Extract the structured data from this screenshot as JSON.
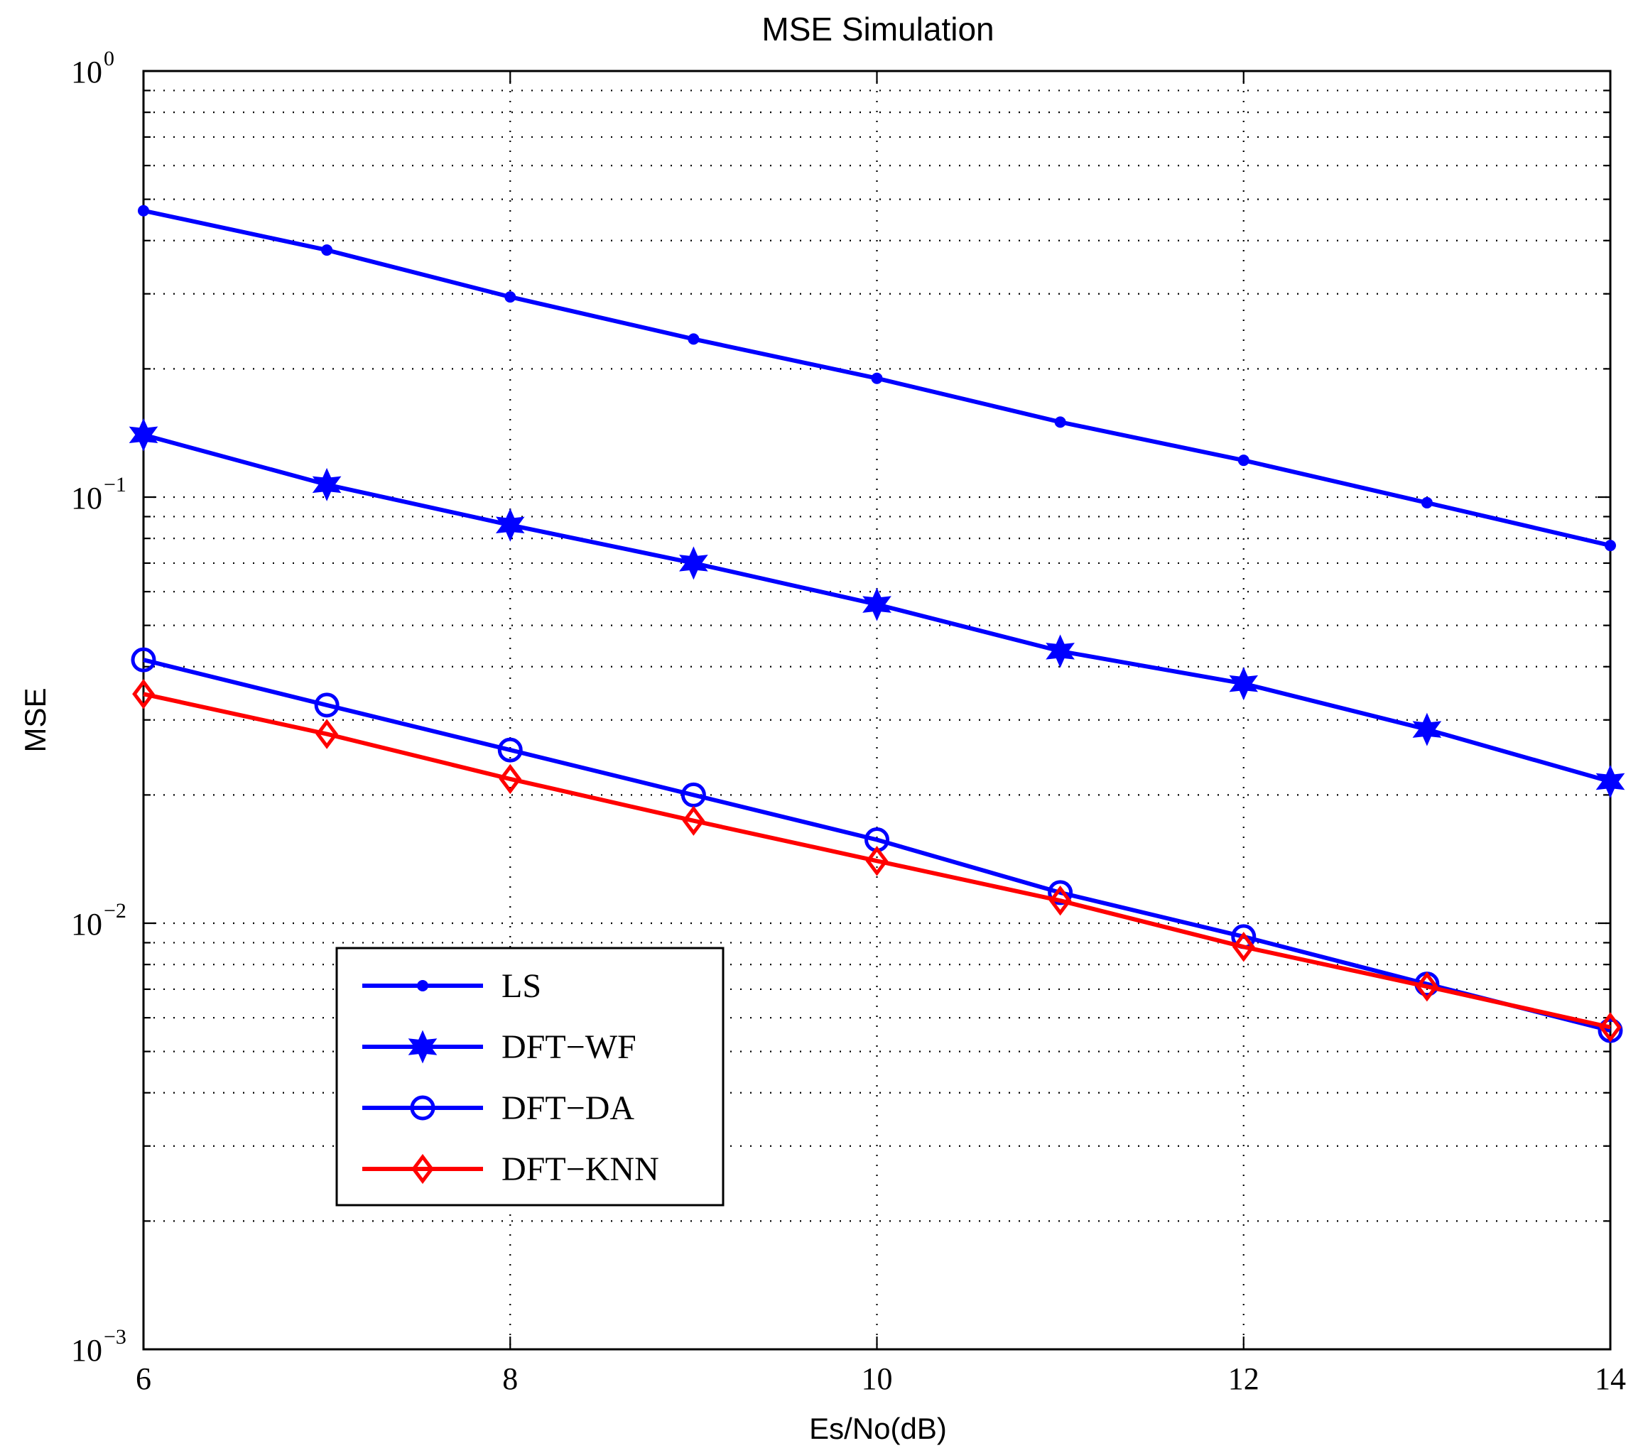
{
  "chart_data": {
    "type": "line",
    "title": "MSE Simulation",
    "xlabel": "Es/No(dB)",
    "ylabel": "MSE",
    "yscale": "log",
    "xlim": [
      6,
      14
    ],
    "ylim": [
      0.001,
      1
    ],
    "grid": true,
    "x_ticks": [
      "6",
      "8",
      "10",
      "12",
      "14"
    ],
    "y_ticks": [
      {
        "base": "10",
        "exp": "0",
        "value": 1
      },
      {
        "base": "10",
        "exp": "−1",
        "value": 0.1
      },
      {
        "base": "10",
        "exp": "−2",
        "value": 0.01
      },
      {
        "base": "10",
        "exp": "−3",
        "value": 0.001
      }
    ],
    "x": [
      6,
      7,
      8,
      9,
      10,
      11,
      12,
      13,
      14
    ],
    "series": [
      {
        "name": "LS",
        "color": "#0000ff",
        "marker": "dot",
        "values": [
          0.47,
          0.38,
          0.295,
          0.235,
          0.19,
          0.15,
          0.122,
          0.097,
          0.077
        ]
      },
      {
        "name": "DFT−WF",
        "color": "#0000ff",
        "marker": "hexagram",
        "values": [
          0.14,
          0.107,
          0.086,
          0.07,
          0.056,
          0.0435,
          0.0365,
          0.0285,
          0.0215
        ]
      },
      {
        "name": "DFT−DA",
        "color": "#0000ff",
        "marker": "circle",
        "values": [
          0.0415,
          0.0325,
          0.0255,
          0.02,
          0.0157,
          0.0118,
          0.0093,
          0.0072,
          0.0056
        ]
      },
      {
        "name": "DFT−KNN",
        "color": "#ff0000",
        "marker": "diamond",
        "values": [
          0.0345,
          0.0278,
          0.0218,
          0.0174,
          0.014,
          0.0113,
          0.0088,
          0.0071,
          0.0057
        ]
      }
    ],
    "legend_position": "bottom-left"
  }
}
